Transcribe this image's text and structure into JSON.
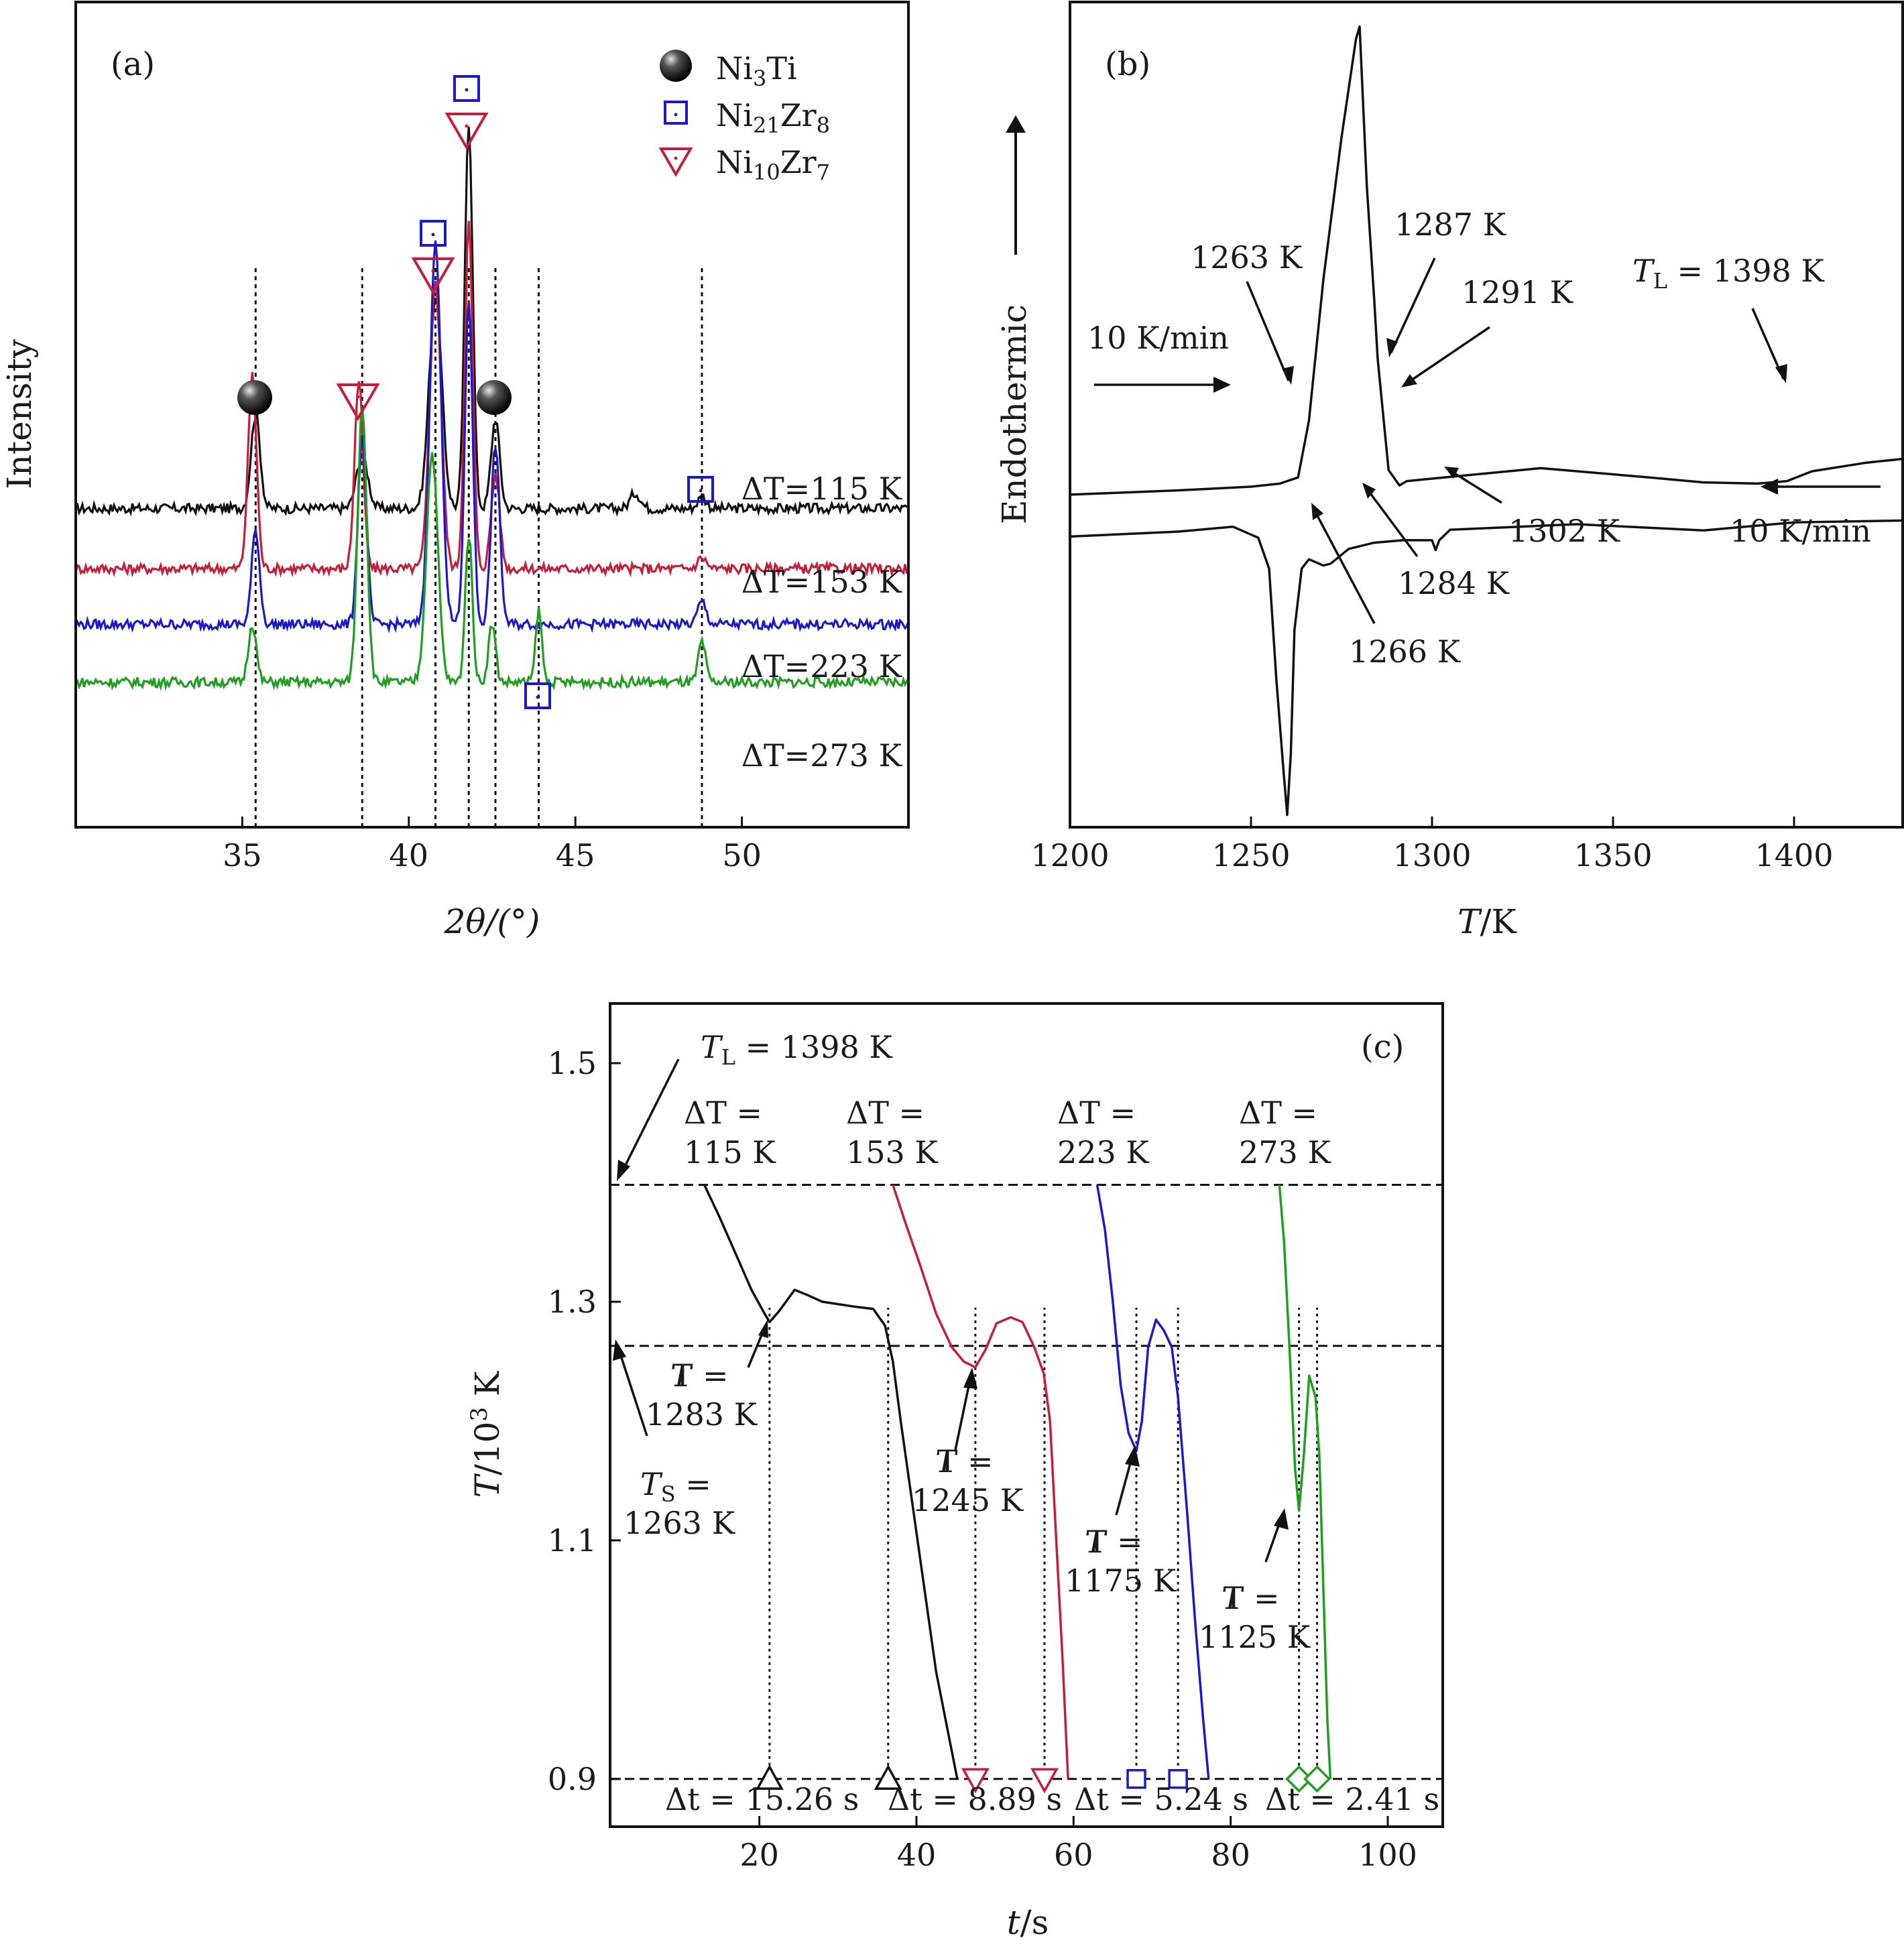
{
  "chart_data": [
    {
      "panel": "(a)",
      "type": "line",
      "xlabel": "2θ/(°)",
      "ylabel": "Intensity",
      "xlim": [
        30,
        55
      ],
      "xticks": [
        35,
        40,
        45,
        50
      ],
      "series": [
        {
          "label": "ΔT=115 K",
          "color": "#111111",
          "baseline": 0.62,
          "peaks": [
            [
              35.4,
              2.1,
              0.32
            ],
            [
              38.6,
              1.2,
              0.4
            ],
            [
              40.8,
              4.7,
              0.45
            ],
            [
              41.8,
              8.6,
              0.28
            ],
            [
              42.6,
              2.0,
              0.3
            ],
            [
              46.8,
              0.35,
              0.35
            ],
            [
              48.8,
              0.25,
              0.3
            ]
          ]
        },
        {
          "label": "ΔT=153 K",
          "color": "#c41e3a",
          "baseline": -0.72,
          "peaks": [
            [
              35.3,
              4.3,
              0.3
            ],
            [
              38.5,
              4.2,
              0.3
            ],
            [
              40.8,
              6.4,
              0.4
            ],
            [
              41.8,
              7.7,
              0.28
            ],
            [
              42.6,
              2.1,
              0.3
            ],
            [
              48.8,
              0.25,
              0.3
            ]
          ]
        },
        {
          "label": "ΔT=223 K",
          "color": "#1a1acc",
          "baseline": -1.96,
          "peaks": [
            [
              35.4,
              2.1,
              0.28
            ],
            [
              38.6,
              4.2,
              0.3
            ],
            [
              40.8,
              8.5,
              0.4
            ],
            [
              41.8,
              7.2,
              0.28
            ],
            [
              42.6,
              4.0,
              0.3
            ],
            [
              48.8,
              0.5,
              0.3
            ]
          ]
        },
        {
          "label": "ΔT=273 K",
          "color": "#1f9e1f",
          "baseline": -3.25,
          "peaks": [
            [
              35.3,
              1.3,
              0.28
            ],
            [
              38.6,
              6.2,
              0.32
            ],
            [
              40.7,
              5.1,
              0.4
            ],
            [
              41.8,
              3.3,
              0.25
            ],
            [
              42.5,
              1.3,
              0.25
            ],
            [
              43.9,
              1.6,
              0.22
            ],
            [
              48.8,
              0.9,
              0.25
            ]
          ]
        }
      ],
      "reference_lines_2theta": [
        35.4,
        38.6,
        40.8,
        41.8,
        42.6,
        43.9,
        48.8
      ],
      "legend": [
        {
          "symbol": "sphere",
          "label_base": "Ni",
          "sub1": "3",
          "mid": "Ti",
          "sub2": ""
        },
        {
          "symbol": "square",
          "label_base": "Ni",
          "sub1": "21",
          "mid": "Zr",
          "sub2": "8"
        },
        {
          "symbol": "triangle",
          "label_base": "Ni",
          "sub1": "10",
          "mid": "Zr",
          "sub2": "7"
        }
      ],
      "legend_position": "top-right"
    },
    {
      "panel": "(b)",
      "type": "line",
      "xlabel_italic": "T",
      "xlabel_rest": "/K",
      "ylabel": "Endothermic",
      "xlim": [
        1200,
        1430
      ],
      "xticks": [
        1200,
        1250,
        1300,
        1350,
        1400
      ],
      "heating_curve": [
        [
          1200,
          0.2
        ],
        [
          1230,
          0.207
        ],
        [
          1250,
          0.213
        ],
        [
          1258,
          0.218
        ],
        [
          1263,
          0.228
        ],
        [
          1266,
          0.32
        ],
        [
          1270,
          0.55
        ],
        [
          1275,
          0.78
        ],
        [
          1279,
          0.94
        ],
        [
          1280,
          0.96
        ],
        [
          1282,
          0.7
        ],
        [
          1284,
          0.52
        ],
        [
          1285,
          0.42
        ],
        [
          1287,
          0.3
        ],
        [
          1288,
          0.24
        ],
        [
          1291,
          0.215
        ],
        [
          1293,
          0.222
        ],
        [
          1300,
          0.226
        ],
        [
          1330,
          0.243
        ],
        [
          1360,
          0.228
        ],
        [
          1375,
          0.22
        ],
        [
          1390,
          0.218
        ],
        [
          1398,
          0.222
        ],
        [
          1405,
          0.238
        ],
        [
          1420,
          0.252
        ],
        [
          1430,
          0.258
        ]
      ],
      "cooling_curve": [
        [
          1200,
          0.132
        ],
        [
          1230,
          0.14
        ],
        [
          1245,
          0.148
        ],
        [
          1252,
          0.13
        ],
        [
          1255,
          0.08
        ],
        [
          1257,
          -0.1
        ],
        [
          1259,
          -0.25
        ],
        [
          1260,
          -0.32
        ],
        [
          1261,
          -0.22
        ],
        [
          1262,
          -0.02
        ],
        [
          1264,
          0.08
        ],
        [
          1266,
          0.095
        ],
        [
          1268,
          0.09
        ],
        [
          1270,
          0.085
        ],
        [
          1272,
          0.088
        ],
        [
          1277,
          0.112
        ],
        [
          1284,
          0.122
        ],
        [
          1292,
          0.126
        ],
        [
          1300,
          0.126
        ],
        [
          1301,
          0.11
        ],
        [
          1302,
          0.126
        ],
        [
          1305,
          0.143
        ],
        [
          1340,
          0.152
        ],
        [
          1375,
          0.142
        ],
        [
          1400,
          0.155
        ],
        [
          1430,
          0.158
        ]
      ],
      "ylim": [
        -0.34,
        1.0
      ],
      "annotations": [
        "1263 K",
        "1287 K",
        "1291 K",
        "1302 K",
        "1284 K",
        "1266 K",
        "10 K/min",
        "10 K/min"
      ],
      "liquidus": {
        "italic": "T",
        "sub": "L",
        "text": " = 1398 K"
      }
    },
    {
      "panel": "(c)",
      "type": "line",
      "xlabel_italic": "t",
      "xlabel_rest": "/s",
      "ylabel_italic": "T",
      "ylabel_rest": "/10",
      "ylabel_sup": "3",
      "ylabel_unit": " K",
      "xlim": [
        1,
        107
      ],
      "ylim": [
        0.86,
        1.55
      ],
      "xticks": [
        20,
        40,
        60,
        80,
        100
      ],
      "yticks": [
        "1.5",
        "1.3",
        "1.1",
        "0.9"
      ],
      "ytick_values": [
        1.5,
        1.3,
        1.1,
        0.9
      ],
      "hlines": [
        1.398,
        1.263,
        0.9
      ],
      "liquidus": {
        "italic": "T",
        "sub": "L",
        "text": " = 1398 K"
      },
      "solidus": {
        "italic": "T",
        "sub": "S",
        "text": " =",
        "line2": "1263 K"
      },
      "series": [
        {
          "label1": "ΔT =",
          "label2": "115 K",
          "color": "#111111",
          "points": [
            [
              13,
              1.398
            ],
            [
              15,
              1.37
            ],
            [
              17,
              1.34
            ],
            [
              19,
              1.31
            ],
            [
              20.5,
              1.292
            ],
            [
              21.3,
              1.283
            ],
            [
              22.5,
              1.292
            ],
            [
              24.5,
              1.31
            ],
            [
              26,
              1.306
            ],
            [
              28,
              1.3
            ],
            [
              32,
              1.296
            ],
            [
              34.5,
              1.294
            ],
            [
              36,
              1.28
            ],
            [
              37,
              1.25
            ],
            [
              38,
              1.2
            ],
            [
              39.5,
              1.13
            ],
            [
              41,
              1.06
            ],
            [
              42.5,
              0.99
            ],
            [
              44,
              0.94
            ],
            [
              45.2,
              0.9
            ]
          ]
        },
        {
          "label1": "ΔT =",
          "label2": "153 K",
          "color": "#c41e3a",
          "points": [
            [
              37,
              1.398
            ],
            [
              38.5,
              1.368
            ],
            [
              40.5,
              1.33
            ],
            [
              42.5,
              1.29
            ],
            [
              44.5,
              1.262
            ],
            [
              46,
              1.25
            ],
            [
              47.5,
              1.245
            ],
            [
              48.8,
              1.26
            ],
            [
              50.2,
              1.282
            ],
            [
              52,
              1.287
            ],
            [
              53.5,
              1.283
            ],
            [
              55,
              1.262
            ],
            [
              56.2,
              1.24
            ],
            [
              57,
              1.2
            ],
            [
              57.8,
              1.1
            ],
            [
              58.6,
              1.0
            ],
            [
              59.3,
              0.9
            ]
          ]
        },
        {
          "label1": "ΔT =",
          "label2": "223 K",
          "color": "#1a1acc",
          "points": [
            [
              63,
              1.398
            ],
            [
              64,
              1.36
            ],
            [
              65,
              1.3
            ],
            [
              66,
              1.23
            ],
            [
              67,
              1.19
            ],
            [
              68,
              1.175
            ],
            [
              68.7,
              1.2
            ],
            [
              69.5,
              1.262
            ],
            [
              70.5,
              1.285
            ],
            [
              71.5,
              1.276
            ],
            [
              72.5,
              1.262
            ],
            [
              73.3,
              1.22
            ],
            [
              74.5,
              1.12
            ],
            [
              75.5,
              1.03
            ],
            [
              76.5,
              0.95
            ],
            [
              77.2,
              0.9
            ]
          ]
        },
        {
          "label1": "ΔT =",
          "label2": "273 K",
          "color": "#1f9e1f",
          "points": [
            [
              86.2,
              1.398
            ],
            [
              86.8,
              1.35
            ],
            [
              87.5,
              1.26
            ],
            [
              88.2,
              1.16
            ],
            [
              88.7,
              1.125
            ],
            [
              89.3,
              1.17
            ],
            [
              90,
              1.238
            ],
            [
              90.8,
              1.22
            ],
            [
              91.3,
              1.17
            ],
            [
              91.8,
              1.06
            ],
            [
              92.3,
              0.95
            ],
            [
              92.7,
              0.9
            ]
          ]
        }
      ],
      "dotted_lines_t": [
        21.3,
        36.4,
        47.5,
        56.3,
        68.0,
        73.3,
        88.7,
        91.0
      ],
      "dt_markers": [
        {
          "t": 21.3,
          "shape": "triangle-up",
          "color": "#111111"
        },
        {
          "t": 36.4,
          "shape": "triangle-up",
          "color": "#111111"
        },
        {
          "t": 47.5,
          "shape": "triangle-down",
          "color": "#c41e3a"
        },
        {
          "t": 56.3,
          "shape": "triangle-down",
          "color": "#c41e3a"
        },
        {
          "t": 68.0,
          "shape": "square",
          "color": "#1a1acc"
        },
        {
          "t": 73.3,
          "shape": "square",
          "color": "#1a1acc"
        },
        {
          "t": 88.7,
          "shape": "diamond",
          "color": "#1f9e1f"
        },
        {
          "t": 91.0,
          "shape": "diamond",
          "color": "#1f9e1f"
        }
      ],
      "dt_labels": [
        "Δt = 15.26 s",
        "Δt = 8.89 s",
        "Δt = 5.24 s",
        "Δt = 2.41 s"
      ],
      "min_labels": [
        {
          "line1": "T =",
          "line2": "1283 K"
        },
        {
          "line1": "T =",
          "line2": "1245 K"
        },
        {
          "line1": "T =",
          "line2": "1175 K"
        },
        {
          "line1": "T =",
          "line2": "1125 K"
        }
      ]
    }
  ],
  "colors": {
    "black": "#111111",
    "red": "#c41e3a",
    "blue": "#1a1acc",
    "green": "#1f9e1f"
  }
}
